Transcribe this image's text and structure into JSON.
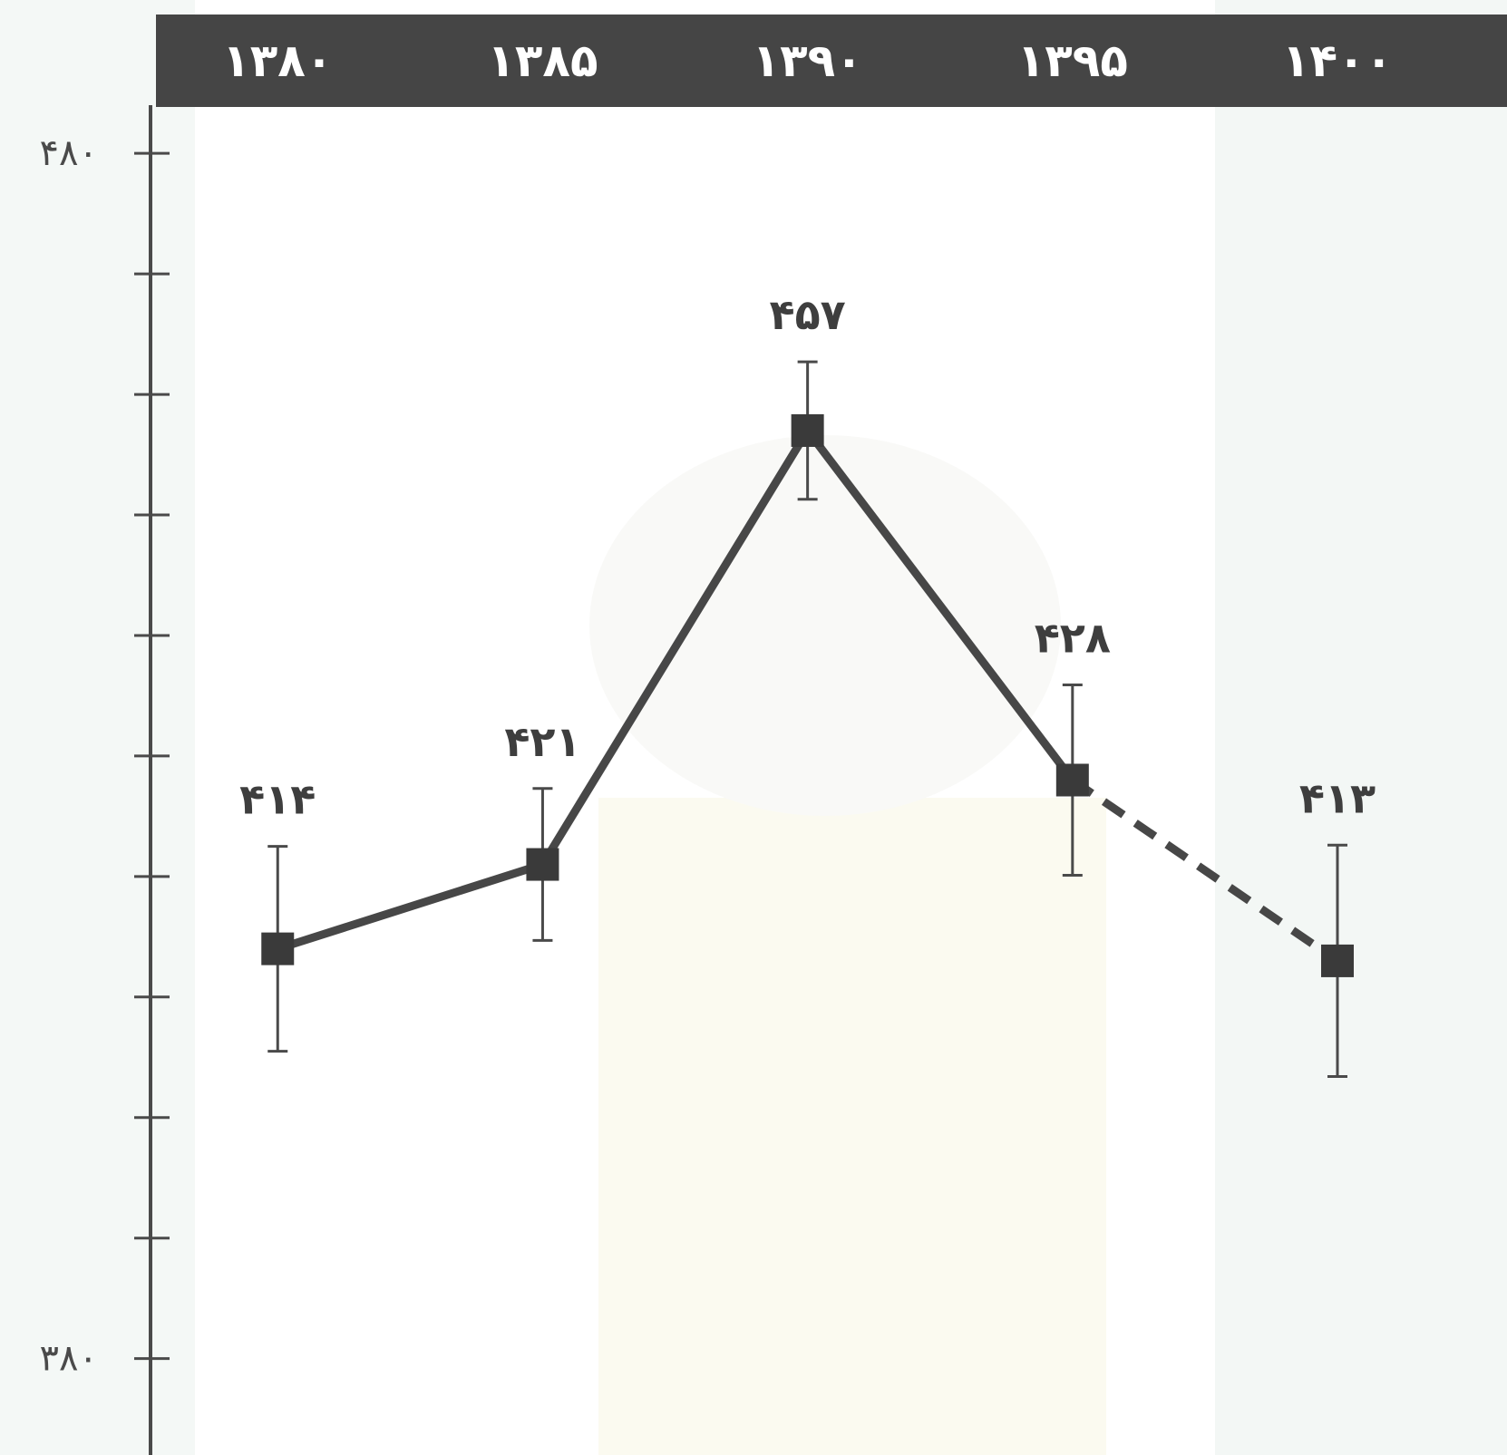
{
  "colors": {
    "background": "#ffffff",
    "backdrop_pale": "#f4f8f6",
    "backdrop_warm": "#fbfaf0",
    "header_band": "#454545",
    "axis": "#4a4a4a",
    "line": "#474747",
    "marker": "#3a3a3a"
  },
  "chart_data": {
    "type": "line",
    "title": "",
    "xlabel": "",
    "ylabel": "",
    "x_axis_position": "top",
    "x": [
      "۱۳۸۰",
      "۱۳۸۵",
      "۱۳۹۰",
      "۱۳۹۵",
      "۱۴۰۰"
    ],
    "x_values": [
      1380,
      1385,
      1390,
      1395,
      1400
    ],
    "x_range": [
      1377.6,
      1403.2
    ],
    "ylim": [
      372,
      484
    ],
    "yticks": {
      "values": [
        380,
        390,
        400,
        410,
        420,
        430,
        440,
        450,
        460,
        470,
        480
      ],
      "labeled": [
        {
          "value": 380,
          "label": "۳۸۰"
        },
        {
          "value": 480,
          "label": "۴۸۰"
        }
      ]
    },
    "grid": false,
    "legend": "none",
    "series": [
      {
        "values": [
          414,
          421,
          457,
          428,
          413
        ],
        "data_labels": [
          "۴۱۴",
          "۴۲۱",
          "۴۵۷",
          "۴۲۸",
          "۴۱۳"
        ],
        "error": [
          8.5,
          6.3,
          5.7,
          7.9,
          9.6
        ],
        "marker": "square",
        "line_style": [
          "solid",
          "solid",
          "solid",
          "dashed"
        ]
      }
    ]
  }
}
